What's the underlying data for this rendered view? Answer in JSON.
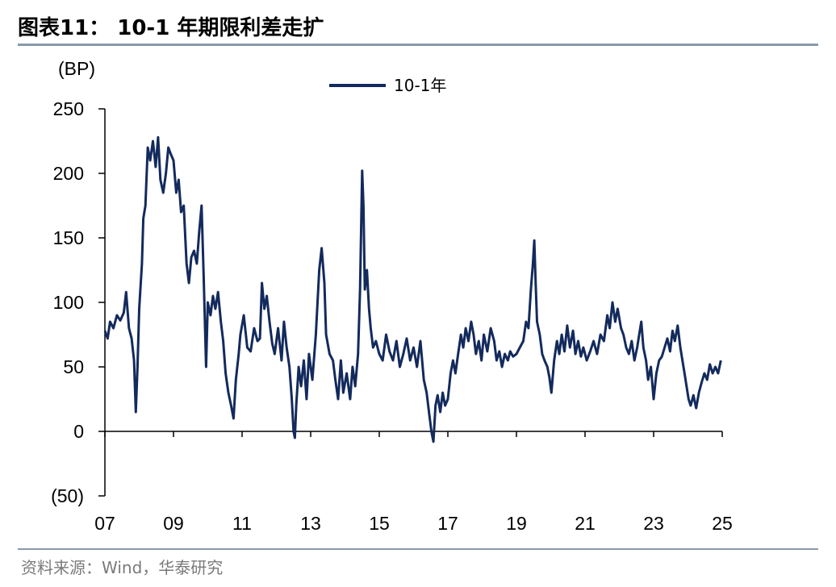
{
  "header": {
    "title": "图表11：  10-1 年期限利差走扩"
  },
  "footer": {
    "source": "资料来源：Wind，华泰研究"
  },
  "colors": {
    "series": "#132a5c",
    "axis": "#000000",
    "rule": "#8899aa"
  },
  "chart_data": {
    "type": "line",
    "title": "",
    "ylabel": "(BP)",
    "xlabel": "",
    "ylim": [
      -50,
      250
    ],
    "xlim": [
      2007,
      2025
    ],
    "y_ticks": [
      -50,
      0,
      50,
      100,
      150,
      200,
      250
    ],
    "y_tick_labels": [
      "(50)",
      "0",
      "50",
      "100",
      "150",
      "200",
      "250"
    ],
    "x_ticks": [
      2007,
      2009,
      2011,
      2013,
      2015,
      2017,
      2019,
      2021,
      2023,
      2025
    ],
    "x_tick_labels": [
      "07",
      "09",
      "11",
      "13",
      "15",
      "17",
      "19",
      "21",
      "23",
      "25"
    ],
    "legend": {
      "position": "top-center"
    },
    "grid": false,
    "series": [
      {
        "name": "10-1年",
        "points": [
          [
            2007.0,
            78
          ],
          [
            2007.08,
            72
          ],
          [
            2007.15,
            85
          ],
          [
            2007.25,
            80
          ],
          [
            2007.35,
            90
          ],
          [
            2007.45,
            86
          ],
          [
            2007.55,
            92
          ],
          [
            2007.62,
            108
          ],
          [
            2007.7,
            80
          ],
          [
            2007.78,
            72
          ],
          [
            2007.85,
            55
          ],
          [
            2007.9,
            15
          ],
          [
            2007.95,
            50
          ],
          [
            2008.0,
            95
          ],
          [
            2008.08,
            130
          ],
          [
            2008.12,
            165
          ],
          [
            2008.18,
            175
          ],
          [
            2008.25,
            220
          ],
          [
            2008.32,
            210
          ],
          [
            2008.4,
            225
          ],
          [
            2008.48,
            205
          ],
          [
            2008.55,
            228
          ],
          [
            2008.62,
            195
          ],
          [
            2008.7,
            185
          ],
          [
            2008.78,
            200
          ],
          [
            2008.85,
            220
          ],
          [
            2008.92,
            215
          ],
          [
            2009.0,
            210
          ],
          [
            2009.08,
            185
          ],
          [
            2009.15,
            195
          ],
          [
            2009.22,
            170
          ],
          [
            2009.3,
            175
          ],
          [
            2009.38,
            130
          ],
          [
            2009.45,
            115
          ],
          [
            2009.52,
            135
          ],
          [
            2009.6,
            140
          ],
          [
            2009.68,
            130
          ],
          [
            2009.75,
            155
          ],
          [
            2009.82,
            175
          ],
          [
            2009.88,
            120
          ],
          [
            2009.95,
            50
          ],
          [
            2010.0,
            100
          ],
          [
            2010.08,
            90
          ],
          [
            2010.15,
            105
          ],
          [
            2010.22,
            95
          ],
          [
            2010.3,
            108
          ],
          [
            2010.38,
            85
          ],
          [
            2010.45,
            70
          ],
          [
            2010.52,
            45
          ],
          [
            2010.6,
            30
          ],
          [
            2010.68,
            20
          ],
          [
            2010.75,
            10
          ],
          [
            2010.82,
            40
          ],
          [
            2010.9,
            60
          ],
          [
            2010.95,
            75
          ],
          [
            2011.05,
            90
          ],
          [
            2011.15,
            65
          ],
          [
            2011.25,
            62
          ],
          [
            2011.35,
            80
          ],
          [
            2011.45,
            70
          ],
          [
            2011.52,
            72
          ],
          [
            2011.58,
            115
          ],
          [
            2011.65,
            95
          ],
          [
            2011.72,
            105
          ],
          [
            2011.8,
            85
          ],
          [
            2011.88,
            68
          ],
          [
            2011.95,
            60
          ],
          [
            2012.05,
            80
          ],
          [
            2012.15,
            55
          ],
          [
            2012.22,
            85
          ],
          [
            2012.3,
            65
          ],
          [
            2012.38,
            50
          ],
          [
            2012.45,
            25
          ],
          [
            2012.5,
            0
          ],
          [
            2012.54,
            -5
          ],
          [
            2012.58,
            20
          ],
          [
            2012.65,
            50
          ],
          [
            2012.72,
            35
          ],
          [
            2012.8,
            55
          ],
          [
            2012.88,
            25
          ],
          [
            2012.95,
            60
          ],
          [
            2013.05,
            40
          ],
          [
            2013.15,
            75
          ],
          [
            2013.25,
            125
          ],
          [
            2013.32,
            142
          ],
          [
            2013.4,
            115
          ],
          [
            2013.45,
            75
          ],
          [
            2013.55,
            60
          ],
          [
            2013.65,
            55
          ],
          [
            2013.72,
            40
          ],
          [
            2013.8,
            25
          ],
          [
            2013.88,
            55
          ],
          [
            2013.95,
            30
          ],
          [
            2014.05,
            45
          ],
          [
            2014.15,
            25
          ],
          [
            2014.22,
            50
          ],
          [
            2014.3,
            35
          ],
          [
            2014.38,
            60
          ],
          [
            2014.44,
            110
          ],
          [
            2014.5,
            202
          ],
          [
            2014.54,
            175
          ],
          [
            2014.58,
            110
          ],
          [
            2014.64,
            125
          ],
          [
            2014.7,
            95
          ],
          [
            2014.75,
            80
          ],
          [
            2014.82,
            65
          ],
          [
            2014.9,
            70
          ],
          [
            2015.0,
            60
          ],
          [
            2015.1,
            55
          ],
          [
            2015.2,
            75
          ],
          [
            2015.3,
            62
          ],
          [
            2015.4,
            55
          ],
          [
            2015.5,
            70
          ],
          [
            2015.6,
            50
          ],
          [
            2015.7,
            60
          ],
          [
            2015.8,
            72
          ],
          [
            2015.9,
            55
          ],
          [
            2016.0,
            65
          ],
          [
            2016.1,
            50
          ],
          [
            2016.2,
            70
          ],
          [
            2016.3,
            40
          ],
          [
            2016.38,
            30
          ],
          [
            2016.45,
            15
          ],
          [
            2016.52,
            0
          ],
          [
            2016.58,
            -8
          ],
          [
            2016.64,
            20
          ],
          [
            2016.7,
            28
          ],
          [
            2016.78,
            15
          ],
          [
            2016.85,
            30
          ],
          [
            2016.92,
            20
          ],
          [
            2017.0,
            25
          ],
          [
            2017.08,
            45
          ],
          [
            2017.15,
            55
          ],
          [
            2017.22,
            45
          ],
          [
            2017.3,
            60
          ],
          [
            2017.38,
            75
          ],
          [
            2017.45,
            65
          ],
          [
            2017.52,
            80
          ],
          [
            2017.6,
            70
          ],
          [
            2017.68,
            85
          ],
          [
            2017.75,
            75
          ],
          [
            2017.82,
            60
          ],
          [
            2017.9,
            70
          ],
          [
            2017.98,
            55
          ],
          [
            2018.05,
            75
          ],
          [
            2018.15,
            62
          ],
          [
            2018.25,
            80
          ],
          [
            2018.35,
            70
          ],
          [
            2018.42,
            55
          ],
          [
            2018.5,
            62
          ],
          [
            2018.58,
            50
          ],
          [
            2018.66,
            60
          ],
          [
            2018.75,
            55
          ],
          [
            2018.82,
            62
          ],
          [
            2018.9,
            58
          ],
          [
            2019.0,
            60
          ],
          [
            2019.1,
            65
          ],
          [
            2019.2,
            70
          ],
          [
            2019.28,
            85
          ],
          [
            2019.35,
            80
          ],
          [
            2019.42,
            110
          ],
          [
            2019.48,
            130
          ],
          [
            2019.52,
            148
          ],
          [
            2019.56,
            115
          ],
          [
            2019.6,
            85
          ],
          [
            2019.68,
            75
          ],
          [
            2019.75,
            60
          ],
          [
            2019.82,
            55
          ],
          [
            2019.9,
            50
          ],
          [
            2019.96,
            42
          ],
          [
            2020.02,
            30
          ],
          [
            2020.1,
            55
          ],
          [
            2020.18,
            70
          ],
          [
            2020.25,
            60
          ],
          [
            2020.32,
            75
          ],
          [
            2020.4,
            62
          ],
          [
            2020.48,
            82
          ],
          [
            2020.56,
            65
          ],
          [
            2020.65,
            78
          ],
          [
            2020.72,
            60
          ],
          [
            2020.8,
            70
          ],
          [
            2020.88,
            58
          ],
          [
            2020.95,
            65
          ],
          [
            2021.05,
            55
          ],
          [
            2021.15,
            62
          ],
          [
            2021.25,
            70
          ],
          [
            2021.35,
            60
          ],
          [
            2021.45,
            75
          ],
          [
            2021.55,
            70
          ],
          [
            2021.65,
            90
          ],
          [
            2021.72,
            80
          ],
          [
            2021.8,
            100
          ],
          [
            2021.88,
            85
          ],
          [
            2021.95,
            95
          ],
          [
            2022.05,
            80
          ],
          [
            2022.12,
            75
          ],
          [
            2022.2,
            65
          ],
          [
            2022.28,
            60
          ],
          [
            2022.36,
            70
          ],
          [
            2022.44,
            55
          ],
          [
            2022.52,
            65
          ],
          [
            2022.58,
            75
          ],
          [
            2022.64,
            85
          ],
          [
            2022.7,
            65
          ],
          [
            2022.78,
            55
          ],
          [
            2022.84,
            40
          ],
          [
            2022.92,
            50
          ],
          [
            2023.0,
            25
          ],
          [
            2023.08,
            45
          ],
          [
            2023.16,
            55
          ],
          [
            2023.24,
            58
          ],
          [
            2023.32,
            65
          ],
          [
            2023.4,
            72
          ],
          [
            2023.48,
            62
          ],
          [
            2023.55,
            78
          ],
          [
            2023.62,
            70
          ],
          [
            2023.7,
            82
          ],
          [
            2023.78,
            65
          ],
          [
            2023.84,
            55
          ],
          [
            2023.9,
            45
          ],
          [
            2023.96,
            35
          ],
          [
            2024.02,
            25
          ],
          [
            2024.08,
            20
          ],
          [
            2024.16,
            28
          ],
          [
            2024.24,
            18
          ],
          [
            2024.32,
            30
          ],
          [
            2024.4,
            38
          ],
          [
            2024.48,
            45
          ],
          [
            2024.56,
            40
          ],
          [
            2024.64,
            52
          ],
          [
            2024.72,
            45
          ],
          [
            2024.8,
            50
          ],
          [
            2024.88,
            45
          ],
          [
            2024.96,
            55
          ]
        ]
      }
    ]
  }
}
